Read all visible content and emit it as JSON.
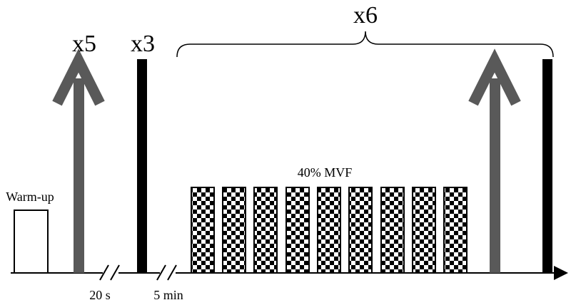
{
  "labels": {
    "warm_up": "Warm-up",
    "repeat_arrow": "x5",
    "repeat_bar": "x3",
    "repeat_block": "x6",
    "intensity": "40% MVF",
    "rest_short": "20 s",
    "rest_long": "5 min"
  }
}
